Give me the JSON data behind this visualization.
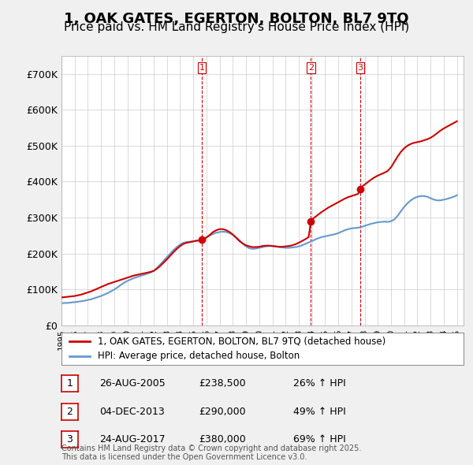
{
  "title": "1, OAK GATES, EGERTON, BOLTON, BL7 9TQ",
  "subtitle": "Price paid vs. HM Land Registry's House Price Index (HPI)",
  "background_color": "#f0f0f0",
  "plot_bg_color": "#ffffff",
  "ylabel": "",
  "ylim": [
    0,
    750000
  ],
  "yticks": [
    0,
    100000,
    200000,
    300000,
    400000,
    500000,
    600000,
    700000
  ],
  "ytick_labels": [
    "£0",
    "£100K",
    "£200K",
    "£300K",
    "£400K",
    "£500K",
    "£600K",
    "£700K"
  ],
  "xlim_start": 1995.0,
  "xlim_end": 2025.5,
  "red_line_color": "#cc0000",
  "blue_line_color": "#6699cc",
  "sale_marker_color": "#cc0000",
  "vline_color": "#cc0000",
  "grid_color": "#cccccc",
  "title_fontsize": 13,
  "subtitle_fontsize": 11,
  "legend_label_red": "1, OAK GATES, EGERTON, BOLTON, BL7 9TQ (detached house)",
  "legend_label_blue": "HPI: Average price, detached house, Bolton",
  "sale_events": [
    {
      "num": 1,
      "date": "26-AUG-2005",
      "price": 238500,
      "pct": "26%",
      "x": 2005.65
    },
    {
      "num": 2,
      "date": "04-DEC-2013",
      "price": 290000,
      "pct": "49%",
      "x": 2013.92
    },
    {
      "num": 3,
      "date": "24-AUG-2017",
      "price": 380000,
      "pct": "69%",
      "x": 2017.65
    }
  ],
  "footer_text": "Contains HM Land Registry data © Crown copyright and database right 2025.\nThis data is licensed under the Open Government Licence v3.0.",
  "hpi_x": [
    1995.0,
    1995.25,
    1995.5,
    1995.75,
    1996.0,
    1996.25,
    1996.5,
    1996.75,
    1997.0,
    1997.25,
    1997.5,
    1997.75,
    1998.0,
    1998.25,
    1998.5,
    1998.75,
    1999.0,
    1999.25,
    1999.5,
    1999.75,
    2000.0,
    2000.25,
    2000.5,
    2000.75,
    2001.0,
    2001.25,
    2001.5,
    2001.75,
    2002.0,
    2002.25,
    2002.5,
    2002.75,
    2003.0,
    2003.25,
    2003.5,
    2003.75,
    2004.0,
    2004.25,
    2004.5,
    2004.75,
    2005.0,
    2005.25,
    2005.5,
    2005.75,
    2006.0,
    2006.25,
    2006.5,
    2006.75,
    2007.0,
    2007.25,
    2007.5,
    2007.75,
    2008.0,
    2008.25,
    2008.5,
    2008.75,
    2009.0,
    2009.25,
    2009.5,
    2009.75,
    2010.0,
    2010.25,
    2010.5,
    2010.75,
    2011.0,
    2011.25,
    2011.5,
    2011.75,
    2012.0,
    2012.25,
    2012.5,
    2012.75,
    2013.0,
    2013.25,
    2013.5,
    2013.75,
    2014.0,
    2014.25,
    2014.5,
    2014.75,
    2015.0,
    2015.25,
    2015.5,
    2015.75,
    2016.0,
    2016.25,
    2016.5,
    2016.75,
    2017.0,
    2017.25,
    2017.5,
    2017.75,
    2018.0,
    2018.25,
    2018.5,
    2018.75,
    2019.0,
    2019.25,
    2019.5,
    2019.75,
    2020.0,
    2020.25,
    2020.5,
    2020.75,
    2021.0,
    2021.25,
    2021.5,
    2021.75,
    2022.0,
    2022.25,
    2022.5,
    2022.75,
    2023.0,
    2023.25,
    2023.5,
    2023.75,
    2024.0,
    2024.25,
    2024.5,
    2024.75,
    2025.0
  ],
  "hpi_y": [
    62000,
    62500,
    63000,
    64000,
    65000,
    66000,
    67500,
    69000,
    71000,
    73000,
    76000,
    79000,
    82000,
    86000,
    90000,
    95000,
    100000,
    106000,
    113000,
    119000,
    124000,
    128000,
    132000,
    135000,
    138000,
    141000,
    144000,
    147000,
    152000,
    160000,
    170000,
    180000,
    190000,
    200000,
    210000,
    218000,
    225000,
    230000,
    232000,
    233000,
    234000,
    235000,
    237000,
    240000,
    245000,
    250000,
    255000,
    258000,
    260000,
    261000,
    260000,
    257000,
    252000,
    245000,
    237000,
    228000,
    220000,
    215000,
    213000,
    214000,
    216000,
    218000,
    220000,
    221000,
    221000,
    220000,
    218000,
    217000,
    216000,
    216000,
    217000,
    218000,
    220000,
    223000,
    227000,
    231000,
    235000,
    239000,
    243000,
    246000,
    248000,
    250000,
    252000,
    254000,
    257000,
    261000,
    265000,
    268000,
    270000,
    271000,
    272000,
    274000,
    277000,
    280000,
    283000,
    285000,
    287000,
    288000,
    289000,
    288000,
    290000,
    295000,
    305000,
    318000,
    330000,
    340000,
    348000,
    354000,
    358000,
    360000,
    360000,
    358000,
    354000,
    350000,
    348000,
    348000,
    350000,
    352000,
    355000,
    358000,
    362000
  ],
  "red_x": [
    1995.0,
    1995.25,
    1995.5,
    1995.75,
    1996.0,
    1996.25,
    1996.5,
    1996.75,
    1997.0,
    1997.25,
    1997.5,
    1997.75,
    1998.0,
    1998.25,
    1998.5,
    1998.75,
    1999.0,
    1999.25,
    1999.5,
    1999.75,
    2000.0,
    2000.25,
    2000.5,
    2000.75,
    2001.0,
    2001.25,
    2001.5,
    2001.75,
    2002.0,
    2002.25,
    2002.5,
    2002.75,
    2003.0,
    2003.25,
    2003.5,
    2003.75,
    2004.0,
    2004.25,
    2004.5,
    2004.75,
    2005.0,
    2005.25,
    2005.5,
    2005.65,
    2005.65,
    2005.75,
    2006.0,
    2006.25,
    2006.5,
    2006.75,
    2007.0,
    2007.25,
    2007.5,
    2007.75,
    2008.0,
    2008.25,
    2008.5,
    2008.75,
    2009.0,
    2009.25,
    2009.5,
    2009.75,
    2010.0,
    2010.25,
    2010.5,
    2010.75,
    2011.0,
    2011.25,
    2011.5,
    2011.75,
    2012.0,
    2012.25,
    2012.5,
    2012.75,
    2013.0,
    2013.25,
    2013.5,
    2013.75,
    2013.92,
    2013.92,
    2014.0,
    2014.25,
    2014.5,
    2014.75,
    2015.0,
    2015.25,
    2015.5,
    2015.75,
    2016.0,
    2016.25,
    2016.5,
    2016.75,
    2017.0,
    2017.25,
    2017.5,
    2017.65,
    2017.65,
    2017.75,
    2018.0,
    2018.25,
    2018.5,
    2018.75,
    2019.0,
    2019.25,
    2019.5,
    2019.75,
    2020.0,
    2020.25,
    2020.5,
    2020.75,
    2021.0,
    2021.25,
    2021.5,
    2021.75,
    2022.0,
    2022.25,
    2022.5,
    2022.75,
    2023.0,
    2023.25,
    2023.5,
    2023.75,
    2024.0,
    2024.25,
    2024.5,
    2024.75,
    2025.0
  ],
  "red_y": [
    78000,
    79000,
    80000,
    81000,
    82000,
    84000,
    86000,
    89000,
    92000,
    95000,
    99000,
    103000,
    107000,
    111000,
    115000,
    118000,
    121000,
    124000,
    127000,
    130000,
    133000,
    136000,
    139000,
    141000,
    143000,
    145000,
    147000,
    149000,
    152000,
    158000,
    166000,
    175000,
    184000,
    194000,
    204000,
    213000,
    221000,
    227000,
    230000,
    232000,
    234000,
    236000,
    237000,
    238500,
    238500,
    240000,
    245000,
    252000,
    260000,
    265000,
    268000,
    268000,
    265000,
    260000,
    253000,
    244000,
    235000,
    228000,
    223000,
    220000,
    218000,
    218000,
    219000,
    221000,
    222000,
    222000,
    221000,
    220000,
    219000,
    219000,
    220000,
    221000,
    223000,
    226000,
    230000,
    235000,
    240000,
    246000,
    290000,
    290000,
    295000,
    302000,
    309000,
    316000,
    322000,
    328000,
    333000,
    338000,
    343000,
    348000,
    353000,
    357000,
    360000,
    363000,
    366000,
    380000,
    380000,
    385000,
    392000,
    399000,
    406000,
    412000,
    417000,
    421000,
    425000,
    430000,
    440000,
    455000,
    470000,
    483000,
    493000,
    500000,
    505000,
    508000,
    510000,
    512000,
    515000,
    518000,
    522000,
    528000,
    535000,
    542000,
    548000,
    553000,
    558000,
    563000,
    568000
  ]
}
